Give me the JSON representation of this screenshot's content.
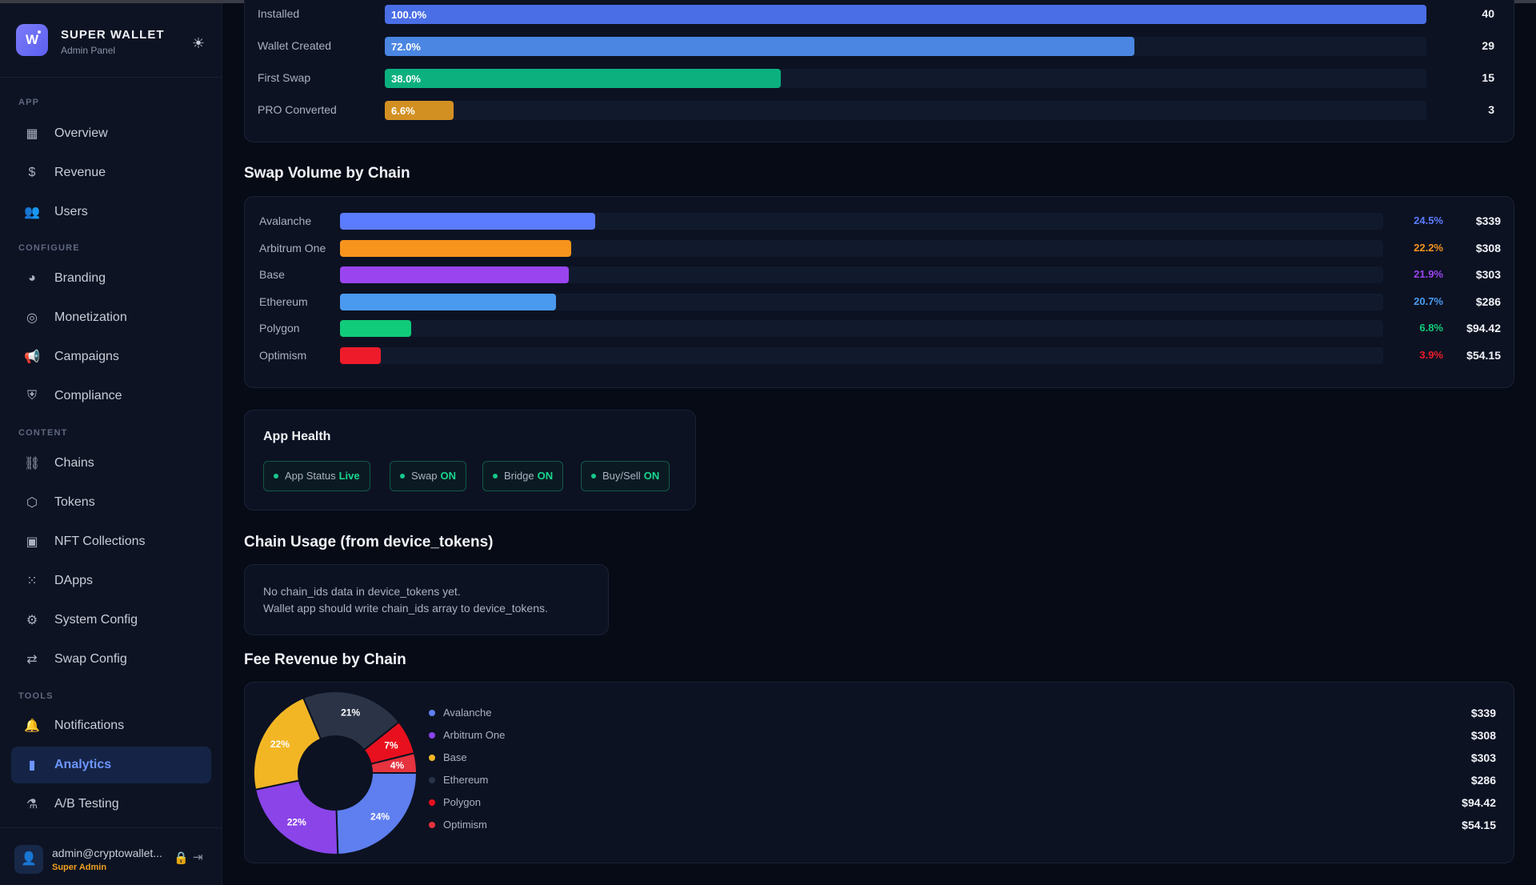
{
  "brand": {
    "logo_letter": "W",
    "title": "SUPER WALLET",
    "subtitle": "Admin Panel"
  },
  "nav": {
    "groups": {
      "app": "APP",
      "configure": "CONFIGURE",
      "content": "CONTENT",
      "tools": "TOOLS"
    },
    "items": [
      {
        "label": "Overview",
        "icon": "grid-icon"
      },
      {
        "label": "Revenue",
        "icon": "dollar-icon"
      },
      {
        "label": "Users",
        "icon": "users-icon"
      },
      {
        "label": "Branding",
        "icon": "palette-icon"
      },
      {
        "label": "Monetization",
        "icon": "award-icon"
      },
      {
        "label": "Campaigns",
        "icon": "megaphone-icon"
      },
      {
        "label": "Compliance",
        "icon": "shield-icon"
      },
      {
        "label": "Chains",
        "icon": "link-icon"
      },
      {
        "label": "Tokens",
        "icon": "cube-icon"
      },
      {
        "label": "NFT Collections",
        "icon": "image-icon"
      },
      {
        "label": "DApps",
        "icon": "apps-icon"
      },
      {
        "label": "System Config",
        "icon": "settings-icon"
      },
      {
        "label": "Swap Config",
        "icon": "swap-icon"
      },
      {
        "label": "Notifications",
        "icon": "bell-icon"
      },
      {
        "label": "Analytics",
        "icon": "bar-chart-icon",
        "active": true
      },
      {
        "label": "A/B Testing",
        "icon": "flask-icon"
      }
    ]
  },
  "user": {
    "email": "admin@cryptowallet...",
    "role": "Super Admin"
  },
  "funnel": {
    "rows": [
      {
        "label": "Installed",
        "pct": "100.0%",
        "fraction": 1.0,
        "count": "40",
        "color": "#4a6ee6"
      },
      {
        "label": "Wallet Created",
        "pct": "72.0%",
        "fraction": 0.72,
        "count": "29",
        "color": "#4a86e2"
      },
      {
        "label": "First Swap",
        "pct": "38.0%",
        "fraction": 0.38,
        "count": "15",
        "color": "#0bb07e"
      },
      {
        "label": "PRO Converted",
        "pct": "6.6%",
        "fraction": 0.066,
        "count": "3",
        "color": "#d39022"
      }
    ]
  },
  "swap_volume": {
    "title": "Swap Volume by Chain",
    "rows": [
      {
        "label": "Avalanche",
        "pct": "24.5%",
        "fraction": 0.245,
        "value": "$339",
        "color": "#5b7cff"
      },
      {
        "label": "Arbitrum One",
        "pct": "22.2%",
        "fraction": 0.222,
        "value": "$308",
        "color": "#f7941d"
      },
      {
        "label": "Base",
        "pct": "21.9%",
        "fraction": 0.219,
        "value": "$303",
        "color": "#9a44f0"
      },
      {
        "label": "Ethereum",
        "pct": "20.7%",
        "fraction": 0.207,
        "value": "$286",
        "color": "#4a9af0"
      },
      {
        "label": "Polygon",
        "pct": "6.8%",
        "fraction": 0.068,
        "value": "$94.42",
        "color": "#10cc7a"
      },
      {
        "label": "Optimism",
        "pct": "3.9%",
        "fraction": 0.039,
        "value": "$54.15",
        "color": "#ee1c2a"
      }
    ]
  },
  "app_health": {
    "title": "App Health",
    "pills": [
      {
        "label": "App Status",
        "value": "Live"
      },
      {
        "label": "Swap",
        "value": "ON"
      },
      {
        "label": "Bridge",
        "value": "ON"
      },
      {
        "label": "Buy/Sell",
        "value": "ON"
      }
    ]
  },
  "chain_usage": {
    "title": "Chain Usage (from device_tokens)",
    "line1": "No chain_ids data in device_tokens yet.",
    "line2": "Wallet app should write chain_ids array to device_tokens."
  },
  "fee_revenue": {
    "title": "Fee Revenue by Chain"
  },
  "chart_data": {
    "type": "pie",
    "title": "Fee Revenue by Chain",
    "categories": [
      "Avalanche",
      "Arbitrum One",
      "Base",
      "Ethereum",
      "Polygon",
      "Optimism"
    ],
    "values": [
      339,
      308,
      303,
      286,
      94.42,
      54.15
    ],
    "value_labels": [
      "$339",
      "$308",
      "$303",
      "$286",
      "$94.42",
      "$54.15"
    ],
    "slice_labels": [
      "24%",
      "22%",
      "22%",
      "21%",
      "7%",
      "4%"
    ],
    "colors": [
      "#5f7ff0",
      "#8a44e8",
      "#f2b625",
      "#2b3447",
      "#e8101e",
      "#e5333f"
    ],
    "legend_placement": "right"
  }
}
